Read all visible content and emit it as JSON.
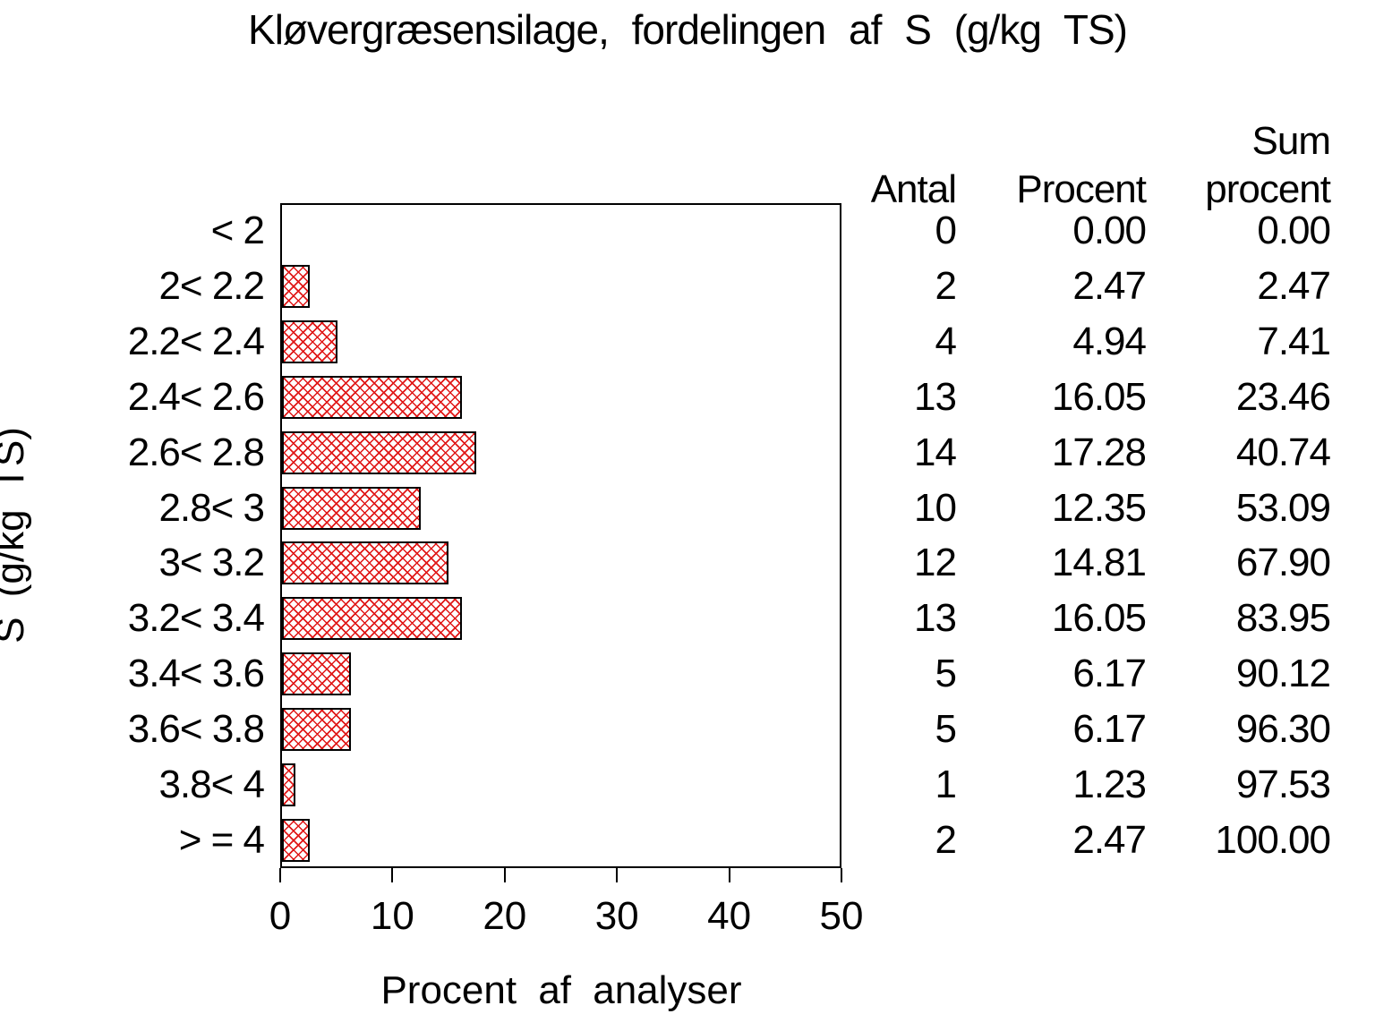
{
  "chart_data": {
    "type": "bar",
    "orientation": "horizontal",
    "title": "Kløvergræsensilage, fordelingen af S (g/kg TS)",
    "xlabel": "Procent af analyser",
    "ylabel": "S (g/kg TS)",
    "xlim": [
      0,
      50
    ],
    "xticks": [
      "0",
      "10",
      "20",
      "30",
      "40",
      "50"
    ],
    "grid": false,
    "legend": "none",
    "bar_fill": "red-cross-hatch",
    "bar_color": "#e01818",
    "bar_border_color": "#000000",
    "categories": [
      "< 2",
      "2< 2.2",
      "2.2< 2.4",
      "2.4< 2.6",
      "2.6< 2.8",
      "2.8< 3",
      "3< 3.2",
      "3.2< 3.4",
      "3.4< 3.6",
      "3.6< 3.8",
      "3.8< 4",
      "> = 4"
    ],
    "series": [
      {
        "name": "Antal",
        "values": [
          0,
          2,
          4,
          13,
          14,
          10,
          12,
          13,
          5,
          5,
          1,
          2
        ]
      },
      {
        "name": "Procent",
        "values": [
          0.0,
          2.47,
          4.94,
          16.05,
          17.28,
          12.35,
          14.81,
          16.05,
          6.17,
          6.17,
          1.23,
          2.47
        ]
      },
      {
        "name": "Sum procent",
        "values": [
          0.0,
          2.47,
          7.41,
          23.46,
          40.74,
          53.09,
          67.9,
          83.95,
          90.12,
          96.3,
          97.53,
          100.0
        ]
      }
    ],
    "bar_value_series": "Procent"
  },
  "table": {
    "header": {
      "antal": "Antal",
      "procent": "Procent",
      "sum_line1": "Sum",
      "sum_line2": "procent"
    },
    "rows": [
      {
        "antal": "0",
        "procent": "0.00",
        "sum": "0.00"
      },
      {
        "antal": "2",
        "procent": "2.47",
        "sum": "2.47"
      },
      {
        "antal": "4",
        "procent": "4.94",
        "sum": "7.41"
      },
      {
        "antal": "13",
        "procent": "16.05",
        "sum": "23.46"
      },
      {
        "antal": "14",
        "procent": "17.28",
        "sum": "40.74"
      },
      {
        "antal": "10",
        "procent": "12.35",
        "sum": "53.09"
      },
      {
        "antal": "12",
        "procent": "14.81",
        "sum": "67.90"
      },
      {
        "antal": "13",
        "procent": "16.05",
        "sum": "83.95"
      },
      {
        "antal": "5",
        "procent": "6.17",
        "sum": "90.12"
      },
      {
        "antal": "5",
        "procent": "6.17",
        "sum": "96.30"
      },
      {
        "antal": "1",
        "procent": "1.23",
        "sum": "97.53"
      },
      {
        "antal": "2",
        "procent": "2.47",
        "sum": "100.00"
      }
    ]
  },
  "colors": {
    "background": "#ffffff",
    "text": "#000000",
    "hatch": "#e01818"
  }
}
